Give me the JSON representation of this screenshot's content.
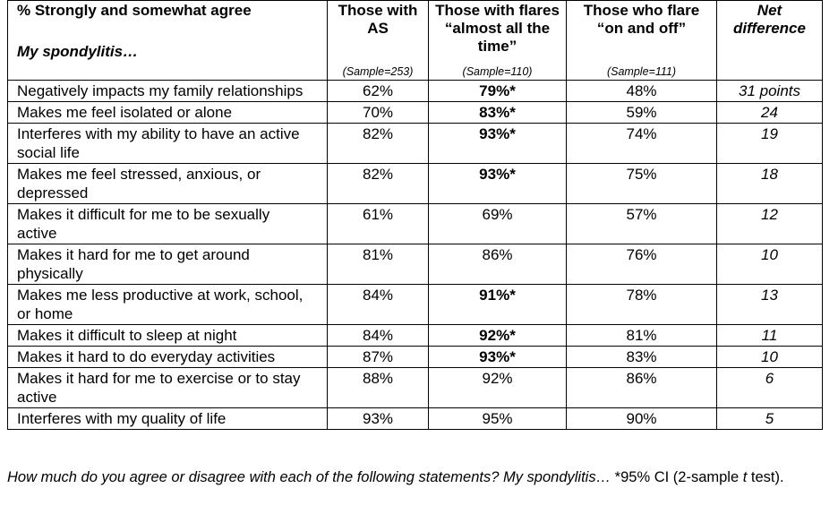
{
  "table": {
    "corner_title": "% Strongly and somewhat agree",
    "corner_subtitle": "My spondylitis…",
    "columns": [
      {
        "header": "Those with AS",
        "sample": "(Sample=253)"
      },
      {
        "header": "Those with flares “almost all the time”",
        "sample": "(Sample=110)"
      },
      {
        "header": "Those who flare “on and off”",
        "sample": "(Sample=111)"
      },
      {
        "header": "Net difference",
        "sample": null
      }
    ],
    "rows": [
      {
        "label": "Negatively impacts my family relationships",
        "cells": [
          "62%",
          "79%*",
          "48%",
          "31 points"
        ],
        "bold": [
          false,
          true,
          false,
          false
        ]
      },
      {
        "label": "Makes me feel isolated or alone",
        "cells": [
          "70%",
          "83%*",
          "59%",
          "24"
        ],
        "bold": [
          false,
          true,
          false,
          false
        ]
      },
      {
        "label": "Interferes with my ability to have an active social life",
        "cells": [
          "82%",
          "93%*",
          "74%",
          "19"
        ],
        "bold": [
          false,
          true,
          false,
          false
        ]
      },
      {
        "label": "Makes me feel stressed, anxious, or depressed",
        "cells": [
          "82%",
          "93%*",
          "75%",
          "18"
        ],
        "bold": [
          false,
          true,
          false,
          false
        ]
      },
      {
        "label": "Makes it difficult for me to be sexually active",
        "cells": [
          "61%",
          "69%",
          "57%",
          "12"
        ],
        "bold": [
          false,
          false,
          false,
          false
        ]
      },
      {
        "label": "Makes it hard for me to get around physically",
        "cells": [
          "81%",
          "86%",
          "76%",
          "10"
        ],
        "bold": [
          false,
          false,
          false,
          false
        ]
      },
      {
        "label": "Makes me less productive at work, school, or home",
        "cells": [
          "84%",
          "91%*",
          "78%",
          "13"
        ],
        "bold": [
          false,
          true,
          false,
          false
        ]
      },
      {
        "label": "Makes it difficult to sleep at night",
        "cells": [
          "84%",
          "92%*",
          "81%",
          "11"
        ],
        "bold": [
          false,
          true,
          false,
          false
        ]
      },
      {
        "label": "Makes it hard to do everyday activities",
        "cells": [
          "87%",
          "93%*",
          "83%",
          "10"
        ],
        "bold": [
          false,
          true,
          false,
          false
        ]
      },
      {
        "label": "Makes it hard for me to exercise or to stay active",
        "cells": [
          "88%",
          "92%",
          "86%",
          "6"
        ],
        "bold": [
          false,
          false,
          false,
          false
        ]
      },
      {
        "label": "Interferes with my quality of life",
        "cells": [
          "93%",
          "95%",
          "90%",
          "5"
        ],
        "bold": [
          false,
          false,
          false,
          false
        ]
      }
    ]
  },
  "footnote": {
    "question": "How much do you agree or disagree with each of the following statements? My spondylitis…",
    "note_start": " *95% CI (2-sample ",
    "note_italic": "t",
    "note_end": " test)."
  }
}
